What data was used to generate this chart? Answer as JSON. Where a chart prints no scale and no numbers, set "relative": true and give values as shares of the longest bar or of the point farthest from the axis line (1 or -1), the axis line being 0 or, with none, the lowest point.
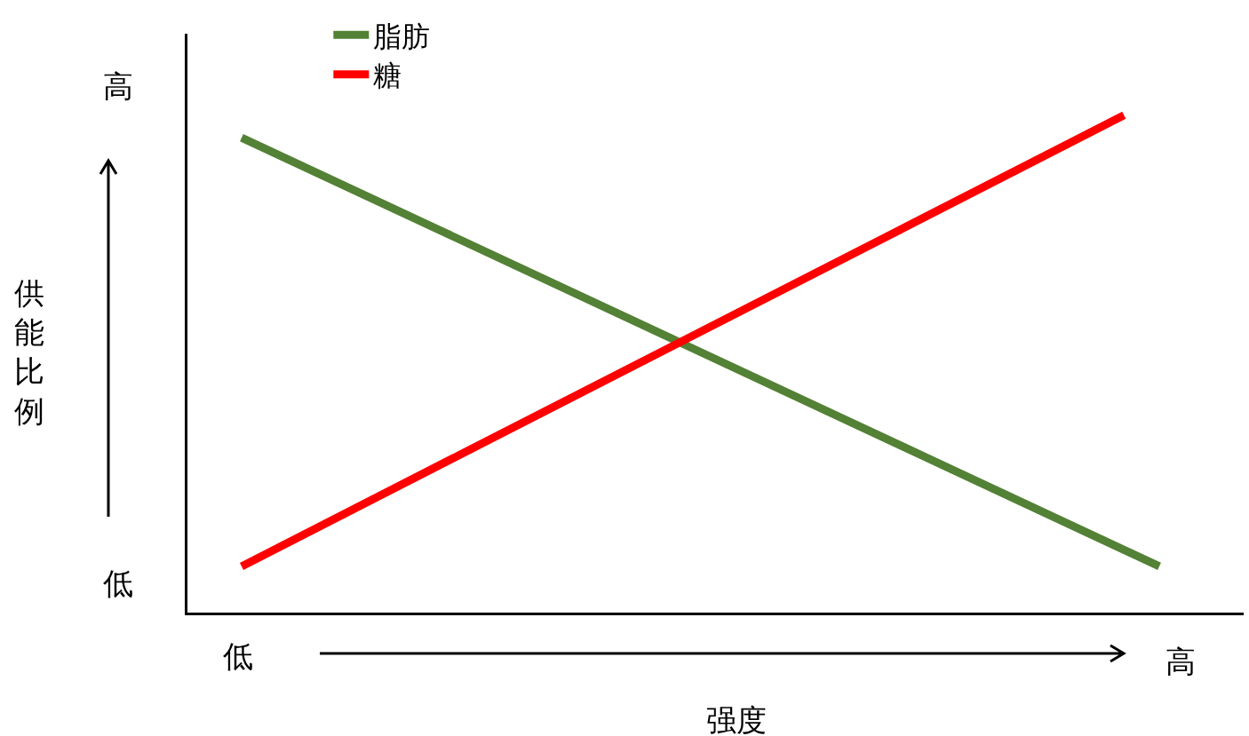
{
  "chart_data": {
    "type": "line",
    "xlabel": "强度",
    "relative": true,
    "categories": [
      null,
      null,
      null,
      null,
      null,
      null,
      null,
      null,
      null,
      null,
      null,
      null,
      null,
      null,
      null,
      null,
      null,
      null,
      null,
      null,
      null,
      null,
      null,
      null,
      null,
      null,
      null
    ],
    "series": [
      {
        "name": "脂肪",
        "color": "#538135",
        "values": [
          0.955,
          null,
          null,
          null,
          null,
          null,
          null,
          null,
          null,
          null,
          null,
          null,
          null,
          null,
          null,
          null,
          null,
          null,
          null,
          null,
          null,
          null,
          null,
          null,
          null,
          null,
          0.093
        ]
      },
      {
        "name": "糖",
        "color": "#ff0000",
        "values": [
          0.093,
          null,
          null,
          null,
          null,
          null,
          null,
          null,
          null,
          null,
          null,
          null,
          null,
          null,
          null,
          null,
          null,
          null,
          null,
          null,
          null,
          null,
          null,
          null,
          null,
          1,
          null
        ]
      }
    ],
    "annotations": [
      "高",
      "低",
      "低",
      "高",
      "供能比例"
    ],
    "legend": "top left",
    "marker": "none",
    "line_style": "solid"
  }
}
